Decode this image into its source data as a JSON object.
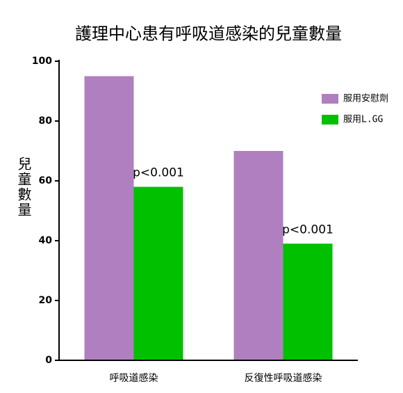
{
  "chart_data": {
    "type": "bar",
    "title": "護理中心患有呼吸道感染的兒童數量",
    "y_label": "兒童數量",
    "categories": [
      "呼吸道感染",
      "反復性呼吸道感染"
    ],
    "series": [
      {
        "name": "服用安慰劑",
        "color": "#b07fc0",
        "values": [
          95,
          70
        ]
      },
      {
        "name": "服用L.GG",
        "color": "#00c000",
        "values": [
          58,
          39
        ]
      }
    ],
    "annotations": [
      "p<0.001",
      "p<0.001"
    ],
    "ylim": [
      0,
      100
    ],
    "yticks": [
      0,
      20,
      40,
      60,
      80,
      100
    ],
    "grid": false,
    "legend": "upper right"
  }
}
